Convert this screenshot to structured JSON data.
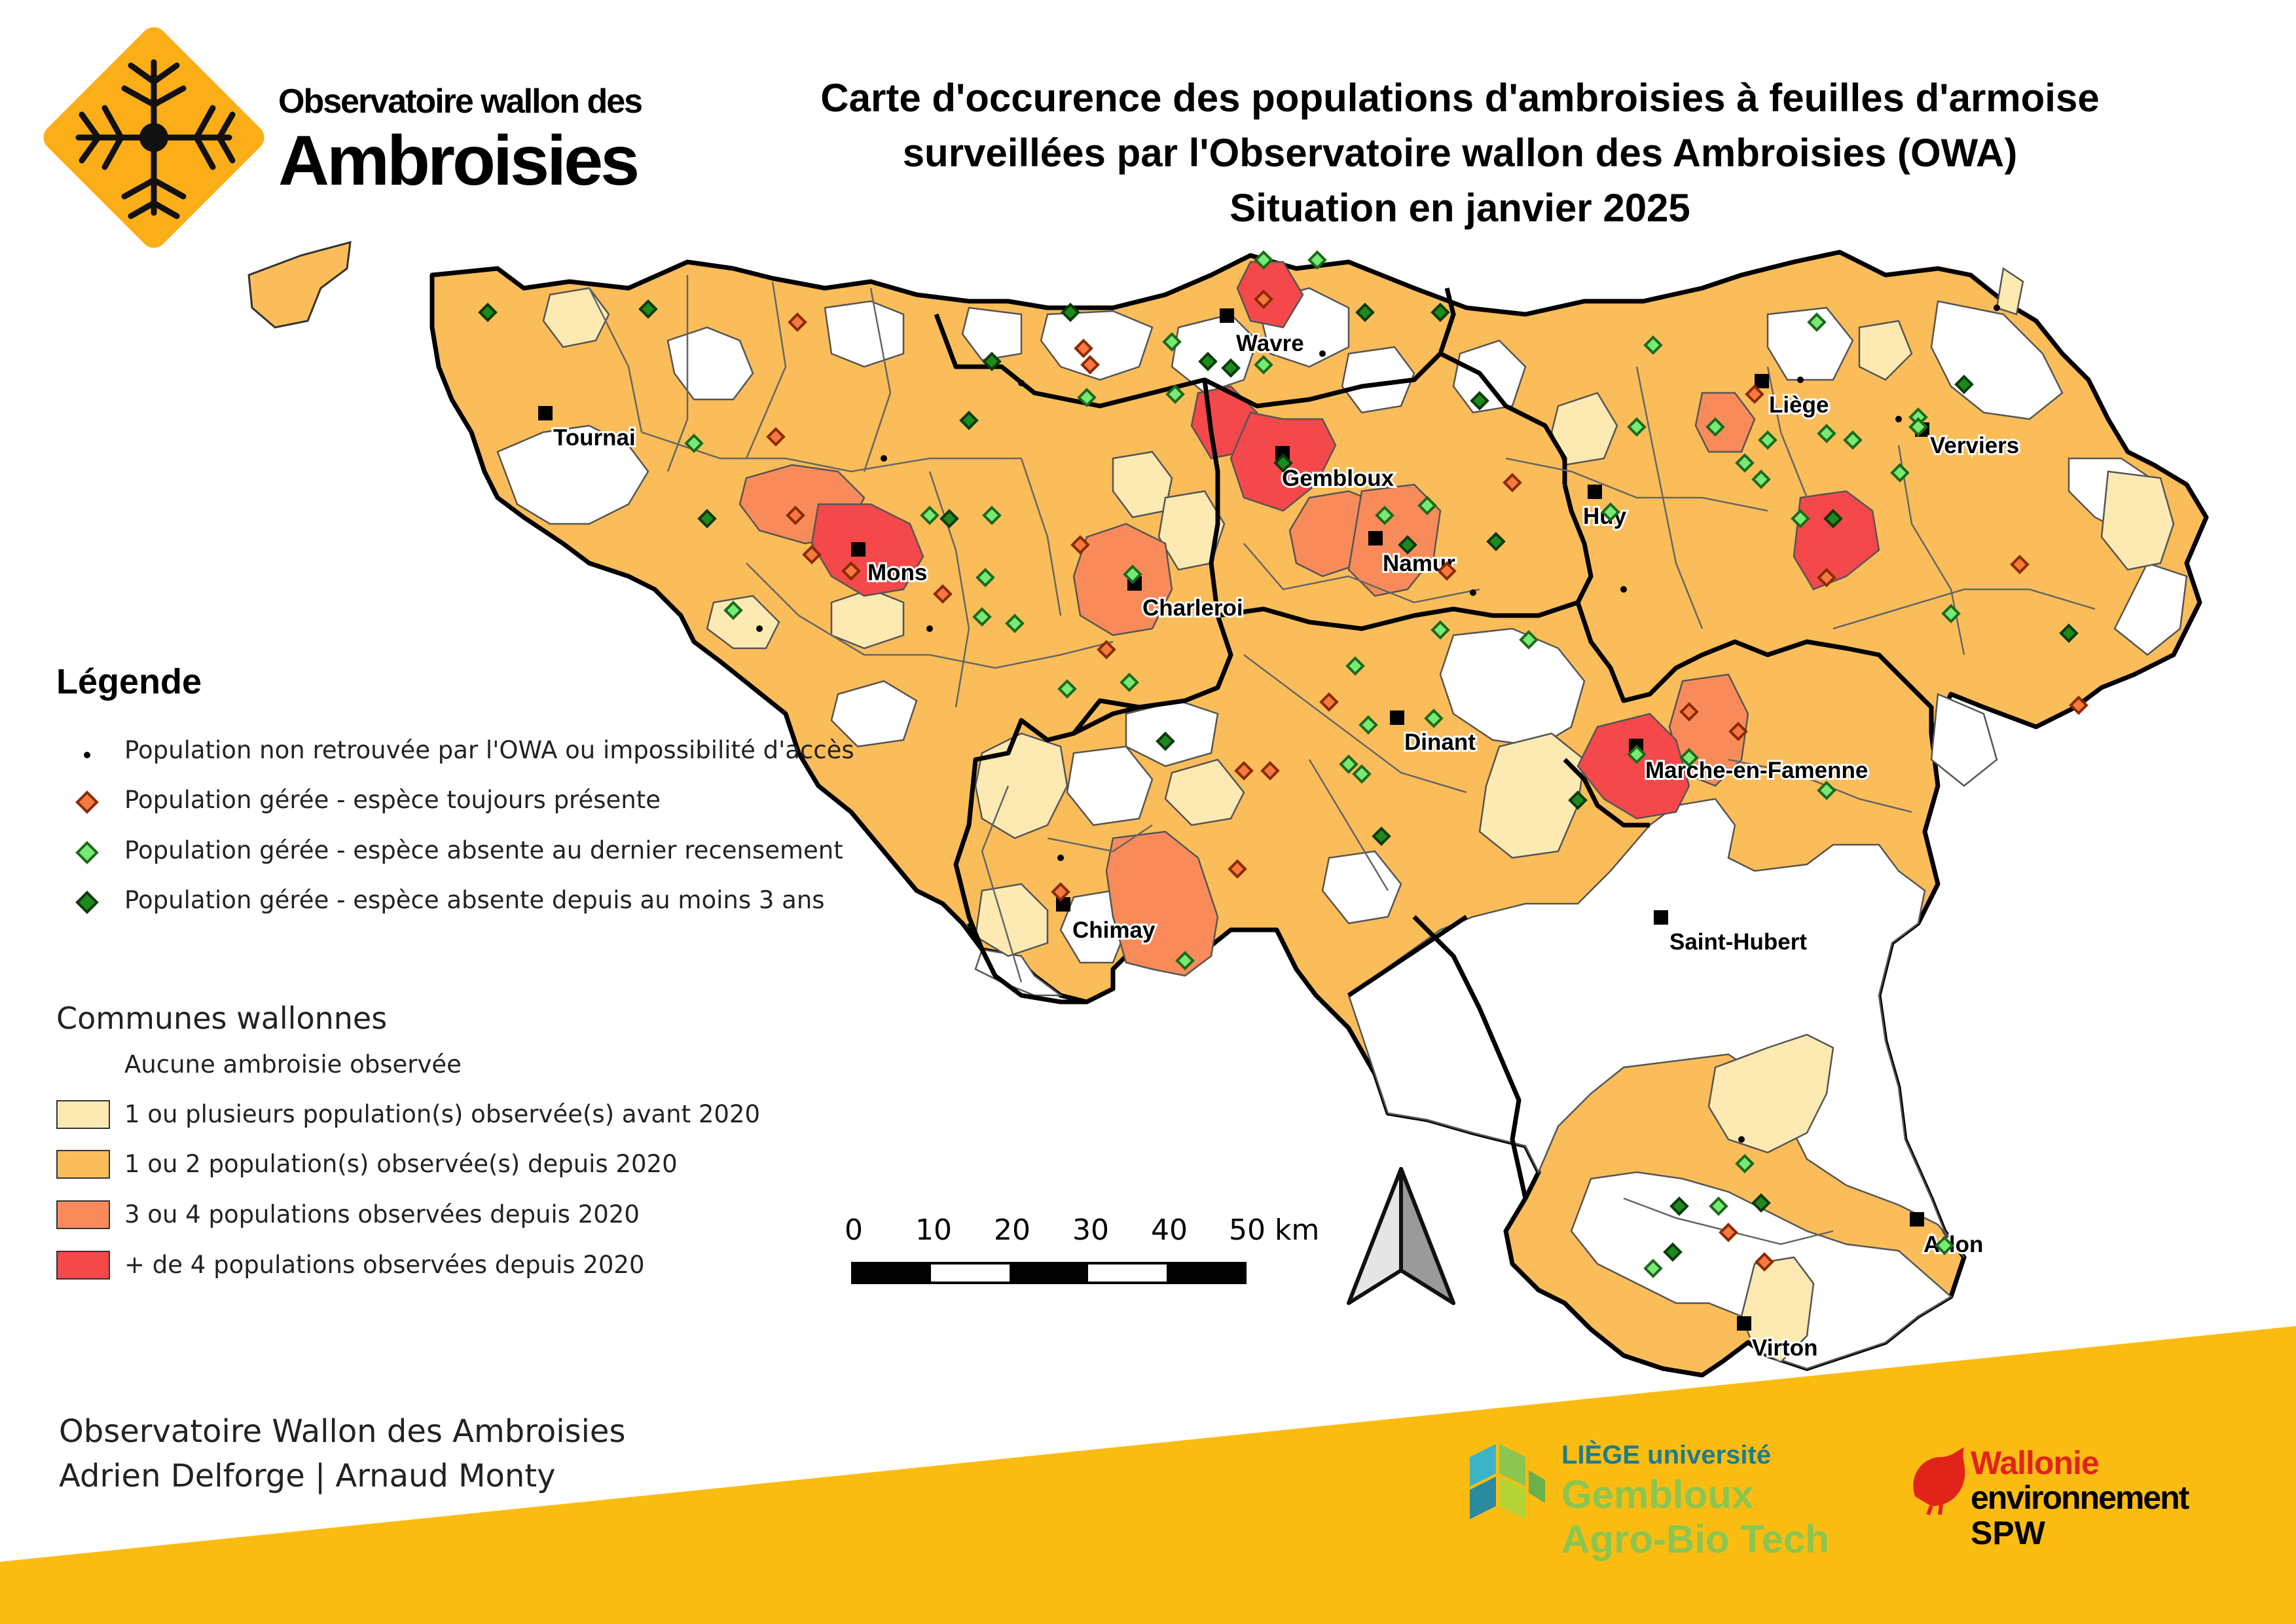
{
  "colors": {
    "none": "#ffffff",
    "before2020": "#fdeab2",
    "one_two": "#fbbd59",
    "three_four": "#f98b5a",
    "more_four": "#f4484a",
    "band": "#fbbc12",
    "absent_recent": "#77ea74",
    "absent_3y": "#1c8a1c",
    "present": "#f6793f"
  },
  "header": {
    "logo_line1": "Observatoire wallon des",
    "logo_line2": "Ambroisies",
    "title_line1": "Carte d'occurence des populations d'ambroisies à feuilles d'armoise",
    "title_line2": "surveillées par l'Observatoire wallon des Ambroisies (OWA)",
    "title_line3": "Situation en janvier 2025"
  },
  "cities": [
    {
      "name": "Tournai"
    },
    {
      "name": "Mons"
    },
    {
      "name": "Charleroi"
    },
    {
      "name": "Wavre"
    },
    {
      "name": "Gembloux"
    },
    {
      "name": "Namur"
    },
    {
      "name": "Huy"
    },
    {
      "name": "Liège"
    },
    {
      "name": "Verviers"
    },
    {
      "name": "Dinant"
    },
    {
      "name": "Marche-en-Famenne"
    },
    {
      "name": "Chimay"
    },
    {
      "name": "Saint-Hubert"
    },
    {
      "name": "Arlon"
    },
    {
      "name": "Virton"
    }
  ],
  "legend": {
    "title": "Légende",
    "points": [
      {
        "label": "Population non retrouvée par l'OWA ou impossibilité d'accès"
      },
      {
        "label": "Population gérée - espèce toujours présente"
      },
      {
        "label": "Population gérée - espèce absente au dernier recensement"
      },
      {
        "label": "Population gérée - espèce absente depuis au moins 3 ans"
      }
    ],
    "communes_title": "Communes wallonnes",
    "communes": [
      {
        "label": "Aucune ambroisie observée"
      },
      {
        "label": "1 ou plusieurs population(s) observée(s) avant 2020"
      },
      {
        "label": "1 ou 2 population(s) observée(s) depuis 2020"
      },
      {
        "label": "3 ou 4 populations observées depuis 2020"
      },
      {
        "label": "+ de 4 populations observées depuis 2020"
      }
    ]
  },
  "scale": {
    "ticks": [
      "0",
      "10",
      "20",
      "30",
      "40",
      "50 km"
    ]
  },
  "credits": {
    "line1": "Observatoire Wallon des Ambroisies",
    "line2": "Adrien Delforge | Arnaud Monty"
  },
  "partners": {
    "uliege_top": "LIÈGE université",
    "uliege_mid": "Gembloux",
    "uliege_bot": "Agro-Bio Tech",
    "wallonie_top": "Wallonie",
    "wallonie_mid": "environnement",
    "wallonie_bot": "SPW"
  }
}
